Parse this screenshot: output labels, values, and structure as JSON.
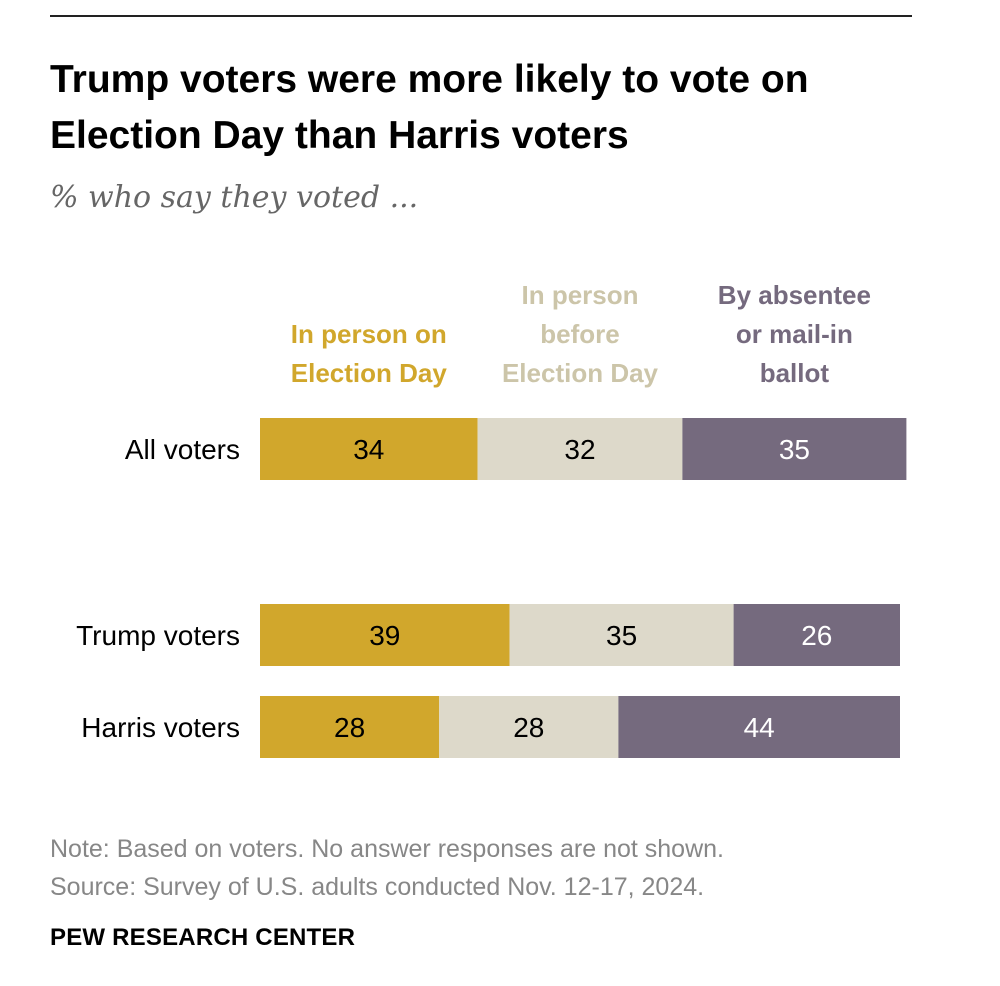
{
  "header": {
    "title": "Trump voters were more likely to vote on Election Day than Harris voters",
    "subtitle": "% who say they voted ..."
  },
  "chart_data": {
    "type": "bar",
    "orientation": "horizontal",
    "stacked": true,
    "title": "Trump voters were more likely to vote on Election Day than Harris voters",
    "subtitle": "% who say they voted ...",
    "xlabel": "",
    "ylabel": "",
    "xlim": [
      0,
      100
    ],
    "grid": false,
    "legend_placement": "top",
    "categories": [
      "All voters",
      "Trump voters",
      "Harris voters"
    ],
    "series": [
      {
        "name": "In person on Election Day",
        "legend_lines": [
          "In person on",
          "Election Day"
        ],
        "color": "#D1A72C",
        "label_color": "#000000",
        "values": [
          34,
          39,
          28
        ]
      },
      {
        "name": "In person before Election Day",
        "legend_lines": [
          "In person",
          "before",
          "Election Day"
        ],
        "color": "#DDD9CA",
        "legend_color": "#CCC5A9",
        "label_color": "#000000",
        "values": [
          32,
          35,
          28
        ]
      },
      {
        "name": "By absentee or mail-in ballot",
        "legend_lines": [
          "By absentee",
          "or mail-in",
          "ballot"
        ],
        "color": "#756A7E",
        "label_color": "#FFFFFF",
        "values": [
          35,
          26,
          44
        ]
      }
    ]
  },
  "footer": {
    "note": "Note: Based on voters. No answer responses are not shown.",
    "source": "Source: Survey of U.S. adults conducted Nov. 12-17, 2024.",
    "brand": "PEW RESEARCH CENTER"
  }
}
